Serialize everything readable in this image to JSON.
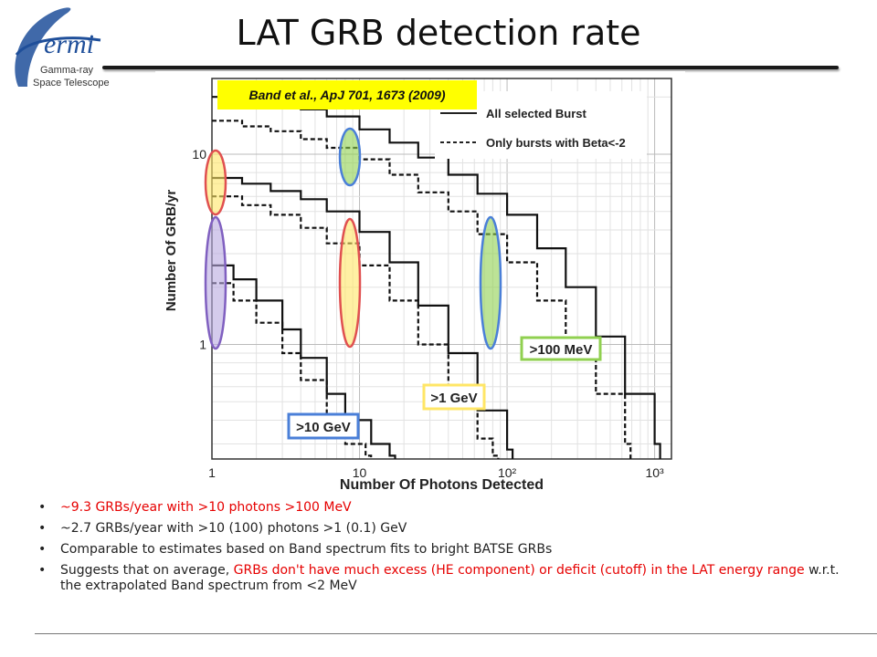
{
  "logo": {
    "brand_text": "ermi",
    "line1": "Gamma-ray",
    "line2": "Space Telescope"
  },
  "title": "LAT GRB detection rate",
  "citation": "Band et al., ApJ 701, 1673 (2009)",
  "chart_data": {
    "type": "line",
    "xlabel": "Number Of Photons Detected",
    "ylabel": "Number Of GRB/yr",
    "xscale": "log",
    "yscale": "log",
    "xlim": [
      1,
      1300
    ],
    "ylim": [
      0.25,
      25
    ],
    "x_ticks": [
      "1",
      "10",
      "10²",
      "10³"
    ],
    "y_ticks": [
      "1",
      "10"
    ],
    "legend_position": "top-right",
    "legend": [
      {
        "label": "All selected Burst",
        "style": "solid"
      },
      {
        "label": "Only bursts with Beta<-2",
        "style": "dashed"
      }
    ],
    "series": [
      {
        "energy": ">100 MeV",
        "style": "solid",
        "x": [
          1,
          1.6,
          2.5,
          4,
          6,
          10,
          16,
          25,
          40,
          63,
          100,
          160,
          250,
          400,
          630,
          1000
        ],
        "y": [
          20,
          19.5,
          18.5,
          17.2,
          15.8,
          13.5,
          11.5,
          9.6,
          7.8,
          6.2,
          4.8,
          3.2,
          2.0,
          1.1,
          0.55,
          0.3
        ]
      },
      {
        "energy": ">100 MeV",
        "style": "dashed",
        "x": [
          1,
          1.6,
          2.5,
          4,
          6,
          10,
          16,
          25,
          40,
          63,
          100,
          160,
          250,
          400,
          630
        ],
        "y": [
          15,
          14,
          13.2,
          12,
          10.8,
          9.4,
          7.8,
          6.3,
          5.0,
          3.8,
          2.7,
          1.7,
          1.0,
          0.55,
          0.3
        ]
      },
      {
        "energy": ">1 GeV",
        "style": "solid",
        "x": [
          1,
          1.6,
          2.5,
          4,
          6,
          10,
          16,
          25,
          40,
          63,
          100
        ],
        "y": [
          7.5,
          7,
          6.4,
          5.8,
          5.0,
          3.9,
          2.7,
          1.6,
          0.9,
          0.45,
          0.28
        ]
      },
      {
        "energy": ">1 GeV",
        "style": "dashed",
        "x": [
          1,
          1.6,
          2.5,
          4,
          6,
          10,
          16,
          25,
          40,
          63,
          80
        ],
        "y": [
          6,
          5.4,
          4.8,
          4.1,
          3.4,
          2.6,
          1.7,
          1.0,
          0.55,
          0.32,
          0.26
        ]
      },
      {
        "energy": ">10 GeV",
        "style": "solid",
        "x": [
          1,
          1.4,
          2,
          3,
          4,
          6,
          8,
          12,
          16
        ],
        "y": [
          2.6,
          2.2,
          1.7,
          1.2,
          0.85,
          0.55,
          0.4,
          0.3,
          0.26
        ]
      },
      {
        "energy": ">10 GeV",
        "style": "dashed",
        "x": [
          1,
          1.4,
          2,
          3,
          4,
          6,
          8,
          11
        ],
        "y": [
          2.1,
          1.7,
          1.3,
          0.9,
          0.65,
          0.42,
          0.3,
          0.26
        ]
      }
    ],
    "annotations": [
      ">100 MeV",
      ">1 GeV",
      ">10 GeV"
    ],
    "highlight_colors": {
      "green": "#90d050",
      "yellow": "#ffe666",
      "blue": "#4a7fd8",
      "red": "#e05050",
      "purple": "#8060c0"
    }
  },
  "bullets": [
    {
      "red": "~9.3 GRBs/year with >10 photons >100 MeV",
      "text": "",
      "red2": ""
    },
    {
      "red": "",
      "text": "~2.7 GRBs/year with >10 (100) photons >1 (0.1) GeV",
      "red2": ""
    },
    {
      "red": "",
      "text": "Comparable to estimates based on Band spectrum fits to bright BATSE GRBs",
      "red2": ""
    },
    {
      "red": "",
      "text": "Suggests that on average, ",
      "red2": "GRBs don't have much excess (HE component) or deficit (cutoff) in the LAT energy range",
      "text2": "w.r.t. the extrapolated Band spectrum from <2 MeV"
    }
  ]
}
